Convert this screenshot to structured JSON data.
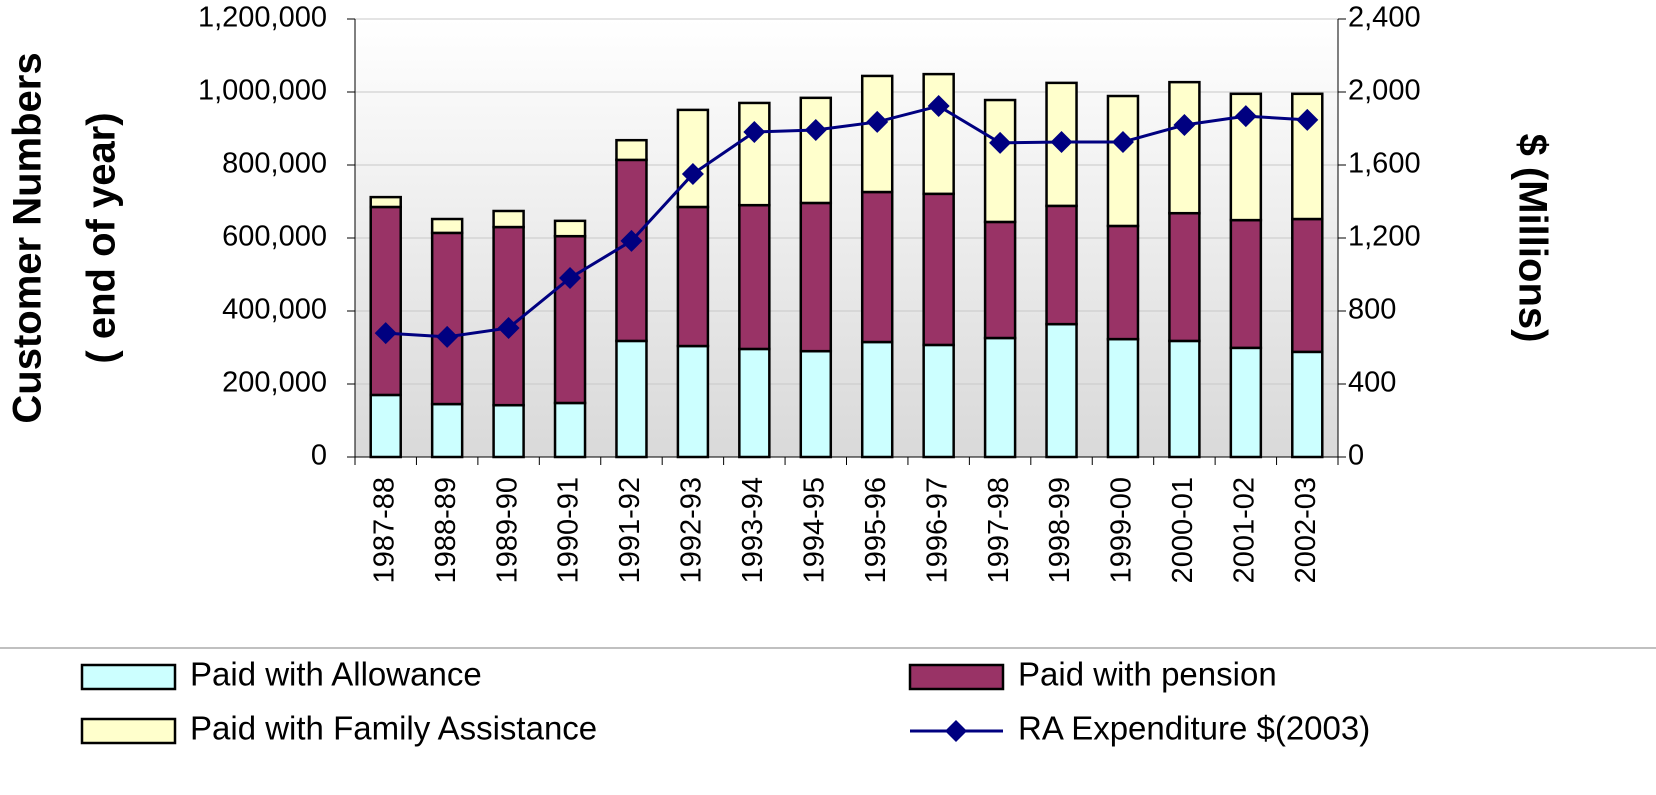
{
  "chart_data": {
    "type": "stacked_bar_line",
    "ylabel": [
      "Customer Numbers",
      "( end of year)"
    ],
    "y2label": "$ (Millions)",
    "categories": [
      "1987-88",
      "1988-89",
      "1989-90",
      "1990-91",
      "1991-92",
      "1992-93",
      "1993-94",
      "1994-95",
      "1995-96",
      "1996-97",
      "1997-98",
      "1998-99",
      "1999-00",
      "2000-01",
      "2001-02",
      "2002-03"
    ],
    "series": [
      {
        "name": "Paid with Allowance",
        "color": "#ccffff",
        "values": [
          170000,
          145000,
          142000,
          148000,
          318000,
          304000,
          296000,
          290000,
          315000,
          307000,
          326000,
          364000,
          323000,
          318000,
          299000,
          288000
        ]
      },
      {
        "name": "Paid with pension",
        "color": "#993366",
        "values": [
          515000,
          469000,
          488000,
          457000,
          496000,
          381000,
          394000,
          406000,
          411000,
          414000,
          318000,
          324000,
          310000,
          350000,
          350000,
          364000
        ]
      },
      {
        "name": "Paid with Family Assistance",
        "color": "#ffffcc",
        "values": [
          27000,
          38000,
          44000,
          42000,
          54000,
          266000,
          280000,
          288000,
          318000,
          328000,
          334000,
          337000,
          356000,
          359000,
          346000,
          343000
        ]
      },
      {
        "name": "RA Expenditure $(2003)",
        "color": "#000080",
        "axis": "y2",
        "values": [
          679,
          658,
          707,
          981,
          1184,
          1551,
          1781,
          1792,
          1836,
          1923,
          1721,
          1726,
          1726,
          1819,
          1868,
          1847
        ]
      }
    ],
    "ylim": [
      0,
      1200000
    ],
    "yticks": [
      0,
      {
        "value": 200000,
        "label": "200,000"
      },
      {
        "value": 400000,
        "label": "400,000"
      },
      {
        "value": 600000,
        "label": "600,000"
      },
      {
        "value": 800000,
        "label": "800,000"
      },
      {
        "value": 1000000,
        "label": "1,000,000"
      },
      {
        "value": 1200000,
        "label": "1,200,000"
      }
    ],
    "y2lim": [
      0,
      2400
    ],
    "y2ticks": [
      0,
      400,
      800,
      {
        "value": 1200,
        "label": "1,200"
      },
      {
        "value": 1600,
        "label": "1,600"
      },
      {
        "value": 2000,
        "label": "2,000"
      },
      {
        "value": 2400,
        "label": "2,400"
      }
    ],
    "grid": true
  }
}
